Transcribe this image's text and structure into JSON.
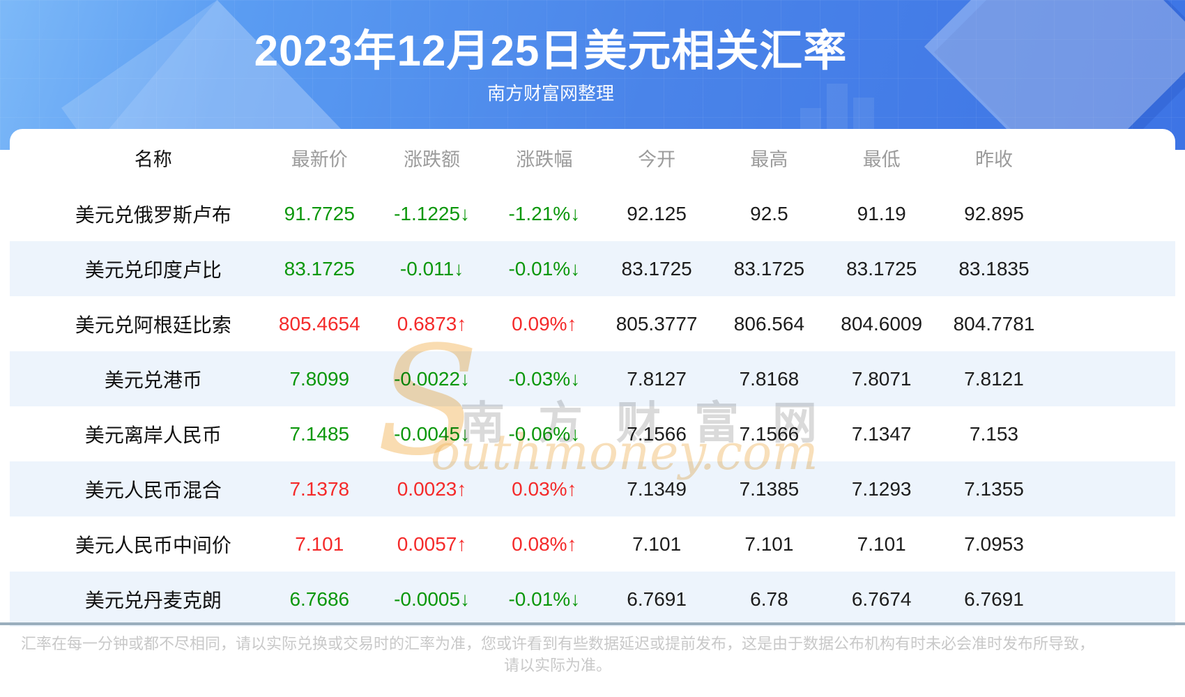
{
  "header": {
    "title": "2023年12月25日美元相关汇率",
    "subtitle": "南方财富网整理"
  },
  "chart_data": {
    "type": "table",
    "title": "2023年12月25日美元相关汇率",
    "subtitle": "南方财富网整理",
    "columns": [
      "名称",
      "最新价",
      "涨跌额",
      "涨跌幅",
      "今开",
      "最高",
      "最低",
      "昨收"
    ],
    "rows": [
      {
        "name": "美元兑俄罗斯卢布",
        "latest": "91.7725",
        "change": "-1.1225↓",
        "change_pct": "-1.21%↓",
        "open": "92.125",
        "high": "92.5",
        "low": "91.19",
        "prev_close": "92.895",
        "trend": "down"
      },
      {
        "name": "美元兑印度卢比",
        "latest": "83.1725",
        "change": "-0.011↓",
        "change_pct": "-0.01%↓",
        "open": "83.1725",
        "high": "83.1725",
        "low": "83.1725",
        "prev_close": "83.1835",
        "trend": "down"
      },
      {
        "name": "美元兑阿根廷比索",
        "latest": "805.4654",
        "change": "0.6873↑",
        "change_pct": "0.09%↑",
        "open": "805.3777",
        "high": "806.564",
        "low": "804.6009",
        "prev_close": "804.7781",
        "trend": "up"
      },
      {
        "name": "美元兑港币",
        "latest": "7.8099",
        "change": "-0.0022↓",
        "change_pct": "-0.03%↓",
        "open": "7.8127",
        "high": "7.8168",
        "low": "7.8071",
        "prev_close": "7.8121",
        "trend": "down"
      },
      {
        "name": "美元离岸人民币",
        "latest": "7.1485",
        "change": "-0.0045↓",
        "change_pct": "-0.06%↓",
        "open": "7.1566",
        "high": "7.1566",
        "low": "7.1347",
        "prev_close": "7.153",
        "trend": "down"
      },
      {
        "name": "美元人民币混合",
        "latest": "7.1378",
        "change": "0.0023↑",
        "change_pct": "0.03%↑",
        "open": "7.1349",
        "high": "7.1385",
        "low": "7.1293",
        "prev_close": "7.1355",
        "trend": "up"
      },
      {
        "name": "美元人民币中间价",
        "latest": "7.101",
        "change": "0.0057↑",
        "change_pct": "0.08%↑",
        "open": "7.101",
        "high": "7.101",
        "low": "7.101",
        "prev_close": "7.0953",
        "trend": "up"
      },
      {
        "name": "美元兑丹麦克朗",
        "latest": "6.7686",
        "change": "-0.0005↓",
        "change_pct": "-0.01%↓",
        "open": "6.7691",
        "high": "6.78",
        "low": "6.7674",
        "prev_close": "6.7691",
        "trend": "down"
      }
    ]
  },
  "watermark": {
    "s": "S",
    "cn": "南方财富网",
    "en": "outhmoney.com"
  },
  "footer": {
    "line1": "汇率在每一分钟或都不尽相同，请以实际兑换或交易时的汇率为准，您或许看到有些数据延迟或提前发布，这是由于数据公布机构有时未必会准时发布所导致，",
    "line2": "请以实际为准。"
  },
  "colors": {
    "up": "#f42a2a",
    "down": "#0b970b",
    "stripe": "#edf4fc",
    "header-text": "#9b9b9b",
    "hero-blue": "#4a84e9",
    "divider": "#9aaebd"
  }
}
